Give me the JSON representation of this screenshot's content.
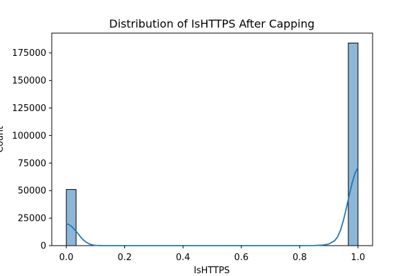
{
  "chart_data": {
    "type": "bar",
    "subtype": "histogram-with-kde",
    "title": "Distribution of IsHTTPS After Capping",
    "xlabel": "IsHTTPS",
    "ylabel": "Count",
    "xlim": [
      -0.05,
      1.05
    ],
    "ylim": [
      0,
      193000
    ],
    "xticks": [
      0.0,
      0.2,
      0.4,
      0.6,
      0.8,
      1.0
    ],
    "xtick_labels": [
      "0.0",
      "0.2",
      "0.4",
      "0.6",
      "0.8",
      "1.0"
    ],
    "yticks": [
      0,
      25000,
      50000,
      75000,
      100000,
      125000,
      150000,
      175000
    ],
    "ytick_labels": [
      "0",
      "25000",
      "50000",
      "75000",
      "100000",
      "125000",
      "150000",
      "175000"
    ],
    "bins": [
      {
        "x0": 0.0,
        "x1": 0.0333,
        "count": 51000
      },
      {
        "x0": 0.9667,
        "x1": 1.0,
        "count": 184000
      }
    ],
    "kde": {
      "x": [
        0.0,
        0.01,
        0.02,
        0.03,
        0.04,
        0.05,
        0.06,
        0.07,
        0.08,
        0.09,
        0.1,
        0.12,
        0.15,
        0.2,
        0.4,
        0.6,
        0.8,
        0.85,
        0.88,
        0.9,
        0.92,
        0.93,
        0.94,
        0.95,
        0.96,
        0.97,
        0.98,
        0.99,
        1.0
      ],
      "y": [
        20000,
        19000,
        17000,
        14000,
        11000,
        7500,
        4800,
        2800,
        1400,
        600,
        250,
        50,
        0,
        0,
        0,
        0,
        0,
        100,
        500,
        1500,
        4500,
        8000,
        14000,
        23000,
        34000,
        46000,
        57000,
        66000,
        71000
      ]
    },
    "colors": {
      "bar_fill": "#8db7d8",
      "bar_edge": "#000000",
      "kde_line": "#1f77b4"
    },
    "grid": false,
    "legend": "none"
  }
}
